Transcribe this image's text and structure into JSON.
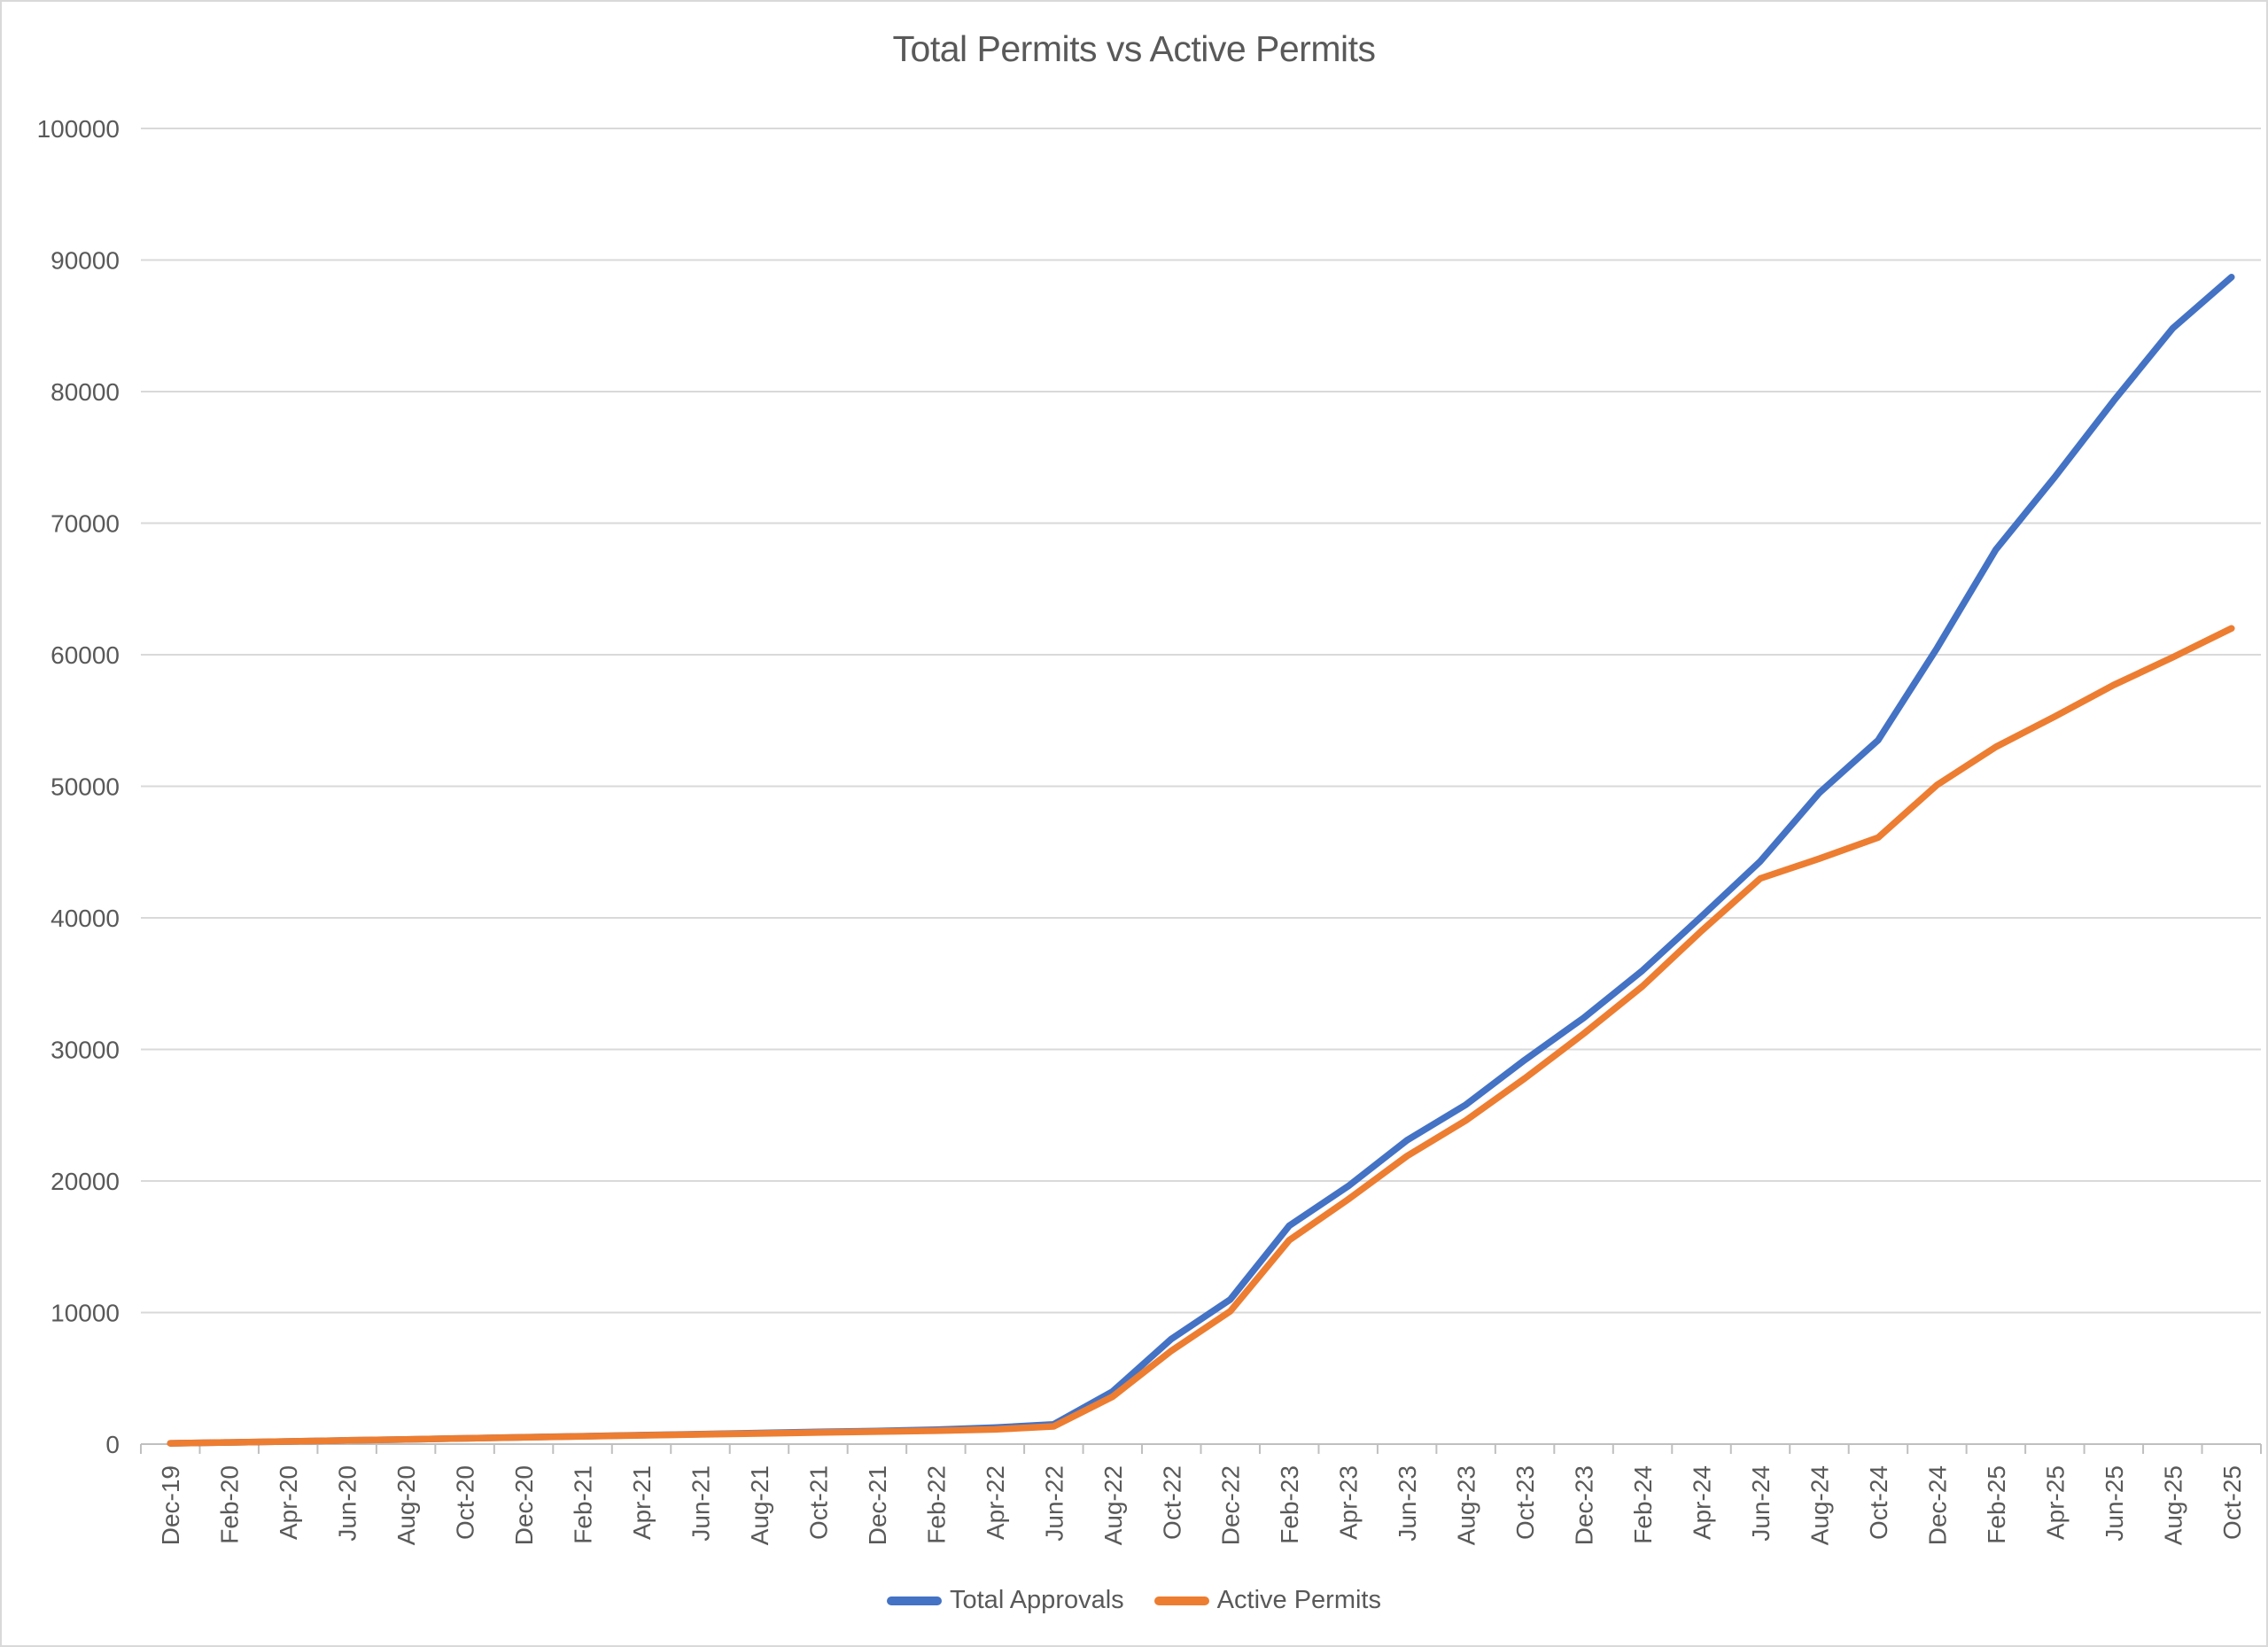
{
  "title": "Total Permits vs Active Permits",
  "colors": {
    "total_approvals": "#4472C4",
    "active_permits": "#ED7D31",
    "gridline": "#D9D9D9",
    "axis_line": "#BFBFBF",
    "tick_mark": "#BFBFBF",
    "label_text": "#595959",
    "frame_border": "#D9D9D9",
    "background": "#FFFFFF"
  },
  "y_axis": {
    "tick_labels": [
      "0",
      "10000",
      "20000",
      "30000",
      "40000",
      "50000",
      "60000",
      "70000",
      "80000",
      "90000",
      "100000"
    ]
  },
  "chart_data": {
    "type": "line",
    "title": "Total Permits vs Active Permits",
    "categories": [
      "Dec-19",
      "Feb-20",
      "Apr-20",
      "Jun-20",
      "Aug-20",
      "Oct-20",
      "Dec-20",
      "Feb-21",
      "Apr-21",
      "Jun-21",
      "Aug-21",
      "Oct-21",
      "Dec-21",
      "Feb-22",
      "Apr-22",
      "Jun-22",
      "Aug-22",
      "Oct-22",
      "Dec-22",
      "Feb-23",
      "Apr-23",
      "Jun-23",
      "Aug-23",
      "Oct-23",
      "Dec-23",
      "Feb-24",
      "Apr-24",
      "Jun-24",
      "Aug-24",
      "Oct-24",
      "Dec-24",
      "Feb-25",
      "Apr-25",
      "Jun-25",
      "Aug-25",
      "Oct-25"
    ],
    "series": [
      {
        "name": "Total Approvals",
        "color": "#4472C4",
        "values": [
          60,
          130,
          200,
          280,
          360,
          440,
          520,
          600,
          680,
          760,
          840,
          920,
          1000,
          1100,
          1250,
          1500,
          4000,
          8000,
          11000,
          16600,
          19600,
          23100,
          25800,
          29200,
          32400,
          36000,
          40100,
          44300,
          49500,
          53500,
          60500,
          68000,
          73500,
          79300,
          84800,
          88700
        ]
      },
      {
        "name": "Active Permits",
        "color": "#ED7D31",
        "values": [
          60,
          130,
          200,
          280,
          360,
          440,
          510,
          590,
          670,
          740,
          810,
          880,
          950,
          1020,
          1120,
          1350,
          3600,
          7100,
          10100,
          15500,
          18600,
          21900,
          24600,
          27800,
          31200,
          34800,
          39000,
          43000,
          44500,
          46100,
          50100,
          53000,
          55300,
          57700,
          59800,
          62000
        ]
      }
    ],
    "xlabel": "",
    "ylabel": "",
    "ylim": [
      0,
      100000
    ],
    "ytick_interval": 10000,
    "grid": true,
    "legend_position": "bottom"
  }
}
